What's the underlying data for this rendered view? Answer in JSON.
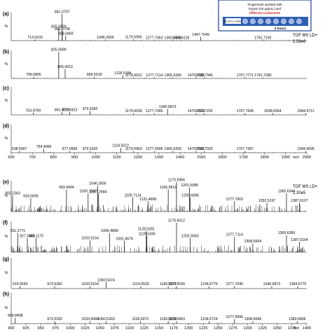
{
  "figure": {
    "instrument_top": "TOF MS LD+",
    "intensity_top": "2.56e6",
    "instrument_bottom": "TOF MS LD+",
    "intensity_bottom": "1.30e5",
    "mz_label": "m/z",
    "percent_label": "%",
    "inset": {
      "line1": "Fingermark spotted with",
      "line2": "trypsin (20 µg/mL) and",
      "line3": "different surfactants",
      "time": "2 hours",
      "caption": "NH₄HCO₃ solution",
      "colors": {
        "frame": "#1a3d8f",
        "highlight": "#d42020",
        "fill": "#2f5fb3"
      }
    }
  },
  "chart_data": [
    {
      "type": "line",
      "panel": "(a)",
      "xlim": [
        600,
        2000
      ],
      "peaks": [
        {
          "mz": 713.0103,
          "rel": 4,
          "label": "713.0103"
        },
        {
          "mz": 825.0959,
          "rel": 45,
          "label": "825.0959"
        },
        {
          "mz": 841.0707,
          "rel": 100,
          "label": "841.0707"
        },
        {
          "mz": 842.0734,
          "rel": 35,
          "label": "842.0734"
        },
        {
          "mz": 858.0469,
          "rel": 18,
          "label": "858.0469"
        },
        {
          "mz": 1046.2656,
          "rel": 4,
          "label": "1046.2656"
        },
        {
          "mz": 1179.5956,
          "rel": 5,
          "label": "1179.5956"
        },
        {
          "mz": 1277.7063,
          "rel": 3,
          "label": "1277.7063"
        },
        {
          "mz": 1365.6344,
          "rel": 3,
          "label": "1365.6344"
        },
        {
          "mz": 1403.6118,
          "rel": 3,
          "label": "1403.6118"
        },
        {
          "mz": 1497.7549,
          "rel": 14,
          "label": "1497.7549"
        },
        {
          "mz": 1791.7192,
          "rel": 3,
          "label": "1791.7192"
        }
      ]
    },
    {
      "type": "line",
      "panel": "(b)",
      "xlim": [
        600,
        2000
      ],
      "peaks": [
        {
          "mz": 706.0805,
          "rel": 6,
          "label": "706.0805"
        },
        {
          "mz": 825.0999,
          "rel": 100,
          "label": "825.0999"
        },
        {
          "mz": 855.4313,
          "rel": 35,
          "label": "855.4313"
        },
        {
          "mz": 993.5018,
          "rel": 6,
          "label": "993.5018"
        },
        {
          "mz": 1128.5284,
          "rel": 12,
          "label": "1128.5284"
        },
        {
          "mz": 1179.6012,
          "rel": 4,
          "label": "1179.6012"
        },
        {
          "mz": 1277.7114,
          "rel": 4,
          "label": "1277.7114"
        },
        {
          "mz": 1365.639,
          "rel": 4,
          "label": "1365.6390"
        },
        {
          "mz": 1475.7681,
          "rel": 4,
          "label": "1475.7681"
        },
        {
          "mz": 1513.7345,
          "rel": 4,
          "label": "1513.7345"
        },
        {
          "mz": 1707.7771,
          "rel": 4,
          "label": "1707.7771"
        },
        {
          "mz": 1791.728,
          "rel": 4,
          "label": "1791.7280"
        }
      ]
    },
    {
      "type": "line",
      "panel": "(c)",
      "xlim": [
        600,
        2000
      ],
      "peaks": [
        {
          "mz": 703.9799,
          "rel": 8,
          "label": "703.9799"
        },
        {
          "mz": 841.0716,
          "rel": 10,
          "label": "841.0716"
        },
        {
          "mz": 877.0423,
          "rel": 10,
          "label": "877.0423"
        },
        {
          "mz": 973.5282,
          "rel": 14,
          "label": "973.5282"
        },
        {
          "mz": 1179.603,
          "rel": 6,
          "label": "1179.6030"
        },
        {
          "mz": 1277.704,
          "rel": 6,
          "label": "1277.7040"
        },
        {
          "mz": 1340.6873,
          "rel": 22,
          "label": "1340.6873"
        },
        {
          "mz": 1475.7529,
          "rel": 6,
          "label": "1475.7529"
        },
        {
          "mz": 1513.7202,
          "rel": 6,
          "label": "1513.7202"
        },
        {
          "mz": 1707.7645,
          "rel": 6,
          "label": "1707.7645"
        },
        {
          "mz": 1838.9264,
          "rel": 6,
          "label": "1838.9264"
        },
        {
          "mz": 1994.9711,
          "rel": 6,
          "label": "1994.9711"
        }
      ]
    },
    {
      "type": "line",
      "panel": "(d)",
      "xlim": [
        600,
        2000
      ],
      "peaks": [
        {
          "mz": 638.5997,
          "rel": 6,
          "label": "638.5997"
        },
        {
          "mz": 754.4069,
          "rel": 14,
          "label": "754.4069"
        },
        {
          "mz": 877.0966,
          "rel": 6,
          "label": "877.0966"
        },
        {
          "mz": 973.5292,
          "rel": 6,
          "label": "973.5292"
        },
        {
          "mz": 1118.5072,
          "rel": 18,
          "label": "1118.5072"
        },
        {
          "mz": 1179.5963,
          "rel": 6,
          "label": "1179.5963"
        },
        {
          "mz": 1277.6996,
          "rel": 6,
          "label": "1277.6996"
        },
        {
          "mz": 1365.6293,
          "rel": 6,
          "label": "1365.6293"
        },
        {
          "mz": 1475.7661,
          "rel": 6,
          "label": "1475.7661"
        },
        {
          "mz": 1513.7325,
          "rel": 6,
          "label": "1513.7325"
        },
        {
          "mz": 1707.7587,
          "rel": 6,
          "label": "1707.7587"
        },
        {
          "mz": 1994.9695,
          "rel": 6,
          "label": "1994.9695"
        }
      ],
      "ticks": [
        600,
        700,
        800,
        900,
        1000,
        1100,
        1200,
        1300,
        1400,
        1500,
        1600,
        1700,
        1800,
        1900,
        2000
      ]
    },
    {
      "type": "line",
      "panel": "(e)",
      "xlim": [
        900,
        1400
      ],
      "peaks": [
        {
          "mz": 902.2343,
          "rel": 55,
          "label": "902.2343"
        },
        {
          "mz": 933.0695,
          "rel": 45,
          "label": "933.0695"
        },
        {
          "mz": 993.4964,
          "rel": 75,
          "label": "993.4964"
        },
        {
          "mz": 1030.1007,
          "rel": 62,
          "label": "1030.1007"
        },
        {
          "mz": 1046.2656,
          "rel": 88,
          "label": "1046.2656"
        },
        {
          "mz": 1047.2684,
          "rel": 60,
          "label": "1047.2684"
        },
        {
          "mz": 1105.7114,
          "rel": 48,
          "label": "1105.7114"
        },
        {
          "mz": 1131.4695,
          "rel": 35,
          "label": "1131.4695"
        },
        {
          "mz": 1165.5819,
          "rel": 75,
          "label": "1165.5819"
        },
        {
          "mz": 1179.5956,
          "rel": 100,
          "label": "1179.5956"
        },
        {
          "mz": 1201.5988,
          "rel": 82,
          "label": "1201.5988"
        },
        {
          "mz": 1202.6068,
          "rel": 48,
          "label": "1202.6068"
        },
        {
          "mz": 1277.7063,
          "rel": 35,
          "label": "1277.7063"
        },
        {
          "mz": 1332.5197,
          "rel": 30,
          "label": "1332.5197"
        },
        {
          "mz": 1365.6344,
          "rel": 62,
          "label": "1365.6344"
        },
        {
          "mz": 1387.6107,
          "rel": 30,
          "label": "1387.6107"
        }
      ]
    },
    {
      "type": "line",
      "panel": "(f)",
      "xlim": [
        900,
        1400
      ],
      "peaks": [
        {
          "mz": 911.2771,
          "rel": 65,
          "label": "911.2771"
        },
        {
          "mz": 927.249,
          "rel": 48,
          "label": "927.2490"
        },
        {
          "mz": 942.1175,
          "rel": 48,
          "label": "942.1175"
        },
        {
          "mz": 1033.5154,
          "rel": 40,
          "label": "1033.5154"
        },
        {
          "mz": 1066.4868,
          "rel": 65,
          "label": "1066.4868"
        },
        {
          "mz": 1091.4676,
          "rel": 38,
          "label": "1091.4676"
        },
        {
          "mz": 1128.5281,
          "rel": 72,
          "label": "1128.5281"
        },
        {
          "mz": 1129.5336,
          "rel": 55,
          "label": "1129.5336"
        },
        {
          "mz": 1179.6012,
          "rel": 100,
          "label": "1179.6012"
        },
        {
          "mz": 1202.605,
          "rel": 48,
          "label": "1202.6050"
        },
        {
          "mz": 1277.7114,
          "rel": 52,
          "label": "1277.7114"
        },
        {
          "mz": 1308.6594,
          "rel": 30,
          "label": "1308.6594"
        },
        {
          "mz": 1365.639,
          "rel": 58,
          "label": "1365.6390"
        },
        {
          "mz": 1387.6164,
          "rel": 35,
          "label": "1387.6164"
        }
      ]
    },
    {
      "type": "line",
      "panel": "(g)",
      "xlim": [
        900,
        1400
      ],
      "peaks": [
        {
          "mz": 915.0043,
          "rel": 8,
          "label": "915.0043"
        },
        {
          "mz": 973.5282,
          "rel": 8,
          "label": "973.5282"
        },
        {
          "mz": 1033.5154,
          "rel": 8,
          "label": "1033.5154"
        },
        {
          "mz": 1060.5474,
          "rel": 22,
          "label": "1060.5474"
        },
        {
          "mz": 1119.0533,
          "rel": 8,
          "label": "1119.0533"
        },
        {
          "mz": 1165.5877,
          "rel": 8,
          "label": "1165.5877"
        },
        {
          "mz": 1179.603,
          "rel": 8,
          "label": "1179.6030"
        },
        {
          "mz": 1234.6776,
          "rel": 8,
          "label": "1234.6776"
        },
        {
          "mz": 1277.704,
          "rel": 8,
          "label": "1277.7040"
        },
        {
          "mz": 1340.6873,
          "rel": 8,
          "label": "1340.6873"
        },
        {
          "mz": 1384.6775,
          "rel": 8,
          "label": "1384.6775"
        }
      ]
    },
    {
      "type": "line",
      "panel": "(h)",
      "xlim": [
        900,
        1400
      ],
      "peaks": [
        {
          "mz": 906.8458,
          "rel": 20,
          "label": "906.8458"
        },
        {
          "mz": 973.5292,
          "rel": 8,
          "label": "973.5292"
        },
        {
          "mz": 1033.5084,
          "rel": 8,
          "label": "1033.5084"
        },
        {
          "mz": 1060.5263,
          "rel": 8,
          "label": "1060.5263"
        },
        {
          "mz": 1118.5072,
          "rel": 8,
          "label": "1118.5072"
        },
        {
          "mz": 1165.5819,
          "rel": 8,
          "label": "1165.5819"
        },
        {
          "mz": 1179.5963,
          "rel": 8,
          "label": "1179.5963"
        },
        {
          "mz": 1234.6724,
          "rel": 8,
          "label": "1234.6724"
        },
        {
          "mz": 1277.6996,
          "rel": 15,
          "label": "1277.6996"
        },
        {
          "mz": 1308.6649,
          "rel": 8,
          "label": "1308.6649"
        },
        {
          "mz": 1383.6866,
          "rel": 8,
          "label": "1383.6866"
        }
      ],
      "ticks": [
        900,
        925,
        950,
        975,
        1000,
        1025,
        1050,
        1075,
        1100,
        1125,
        1150,
        1175,
        1200,
        1225,
        1250,
        1275,
        1300,
        1325,
        1350,
        1375,
        1400
      ]
    }
  ]
}
